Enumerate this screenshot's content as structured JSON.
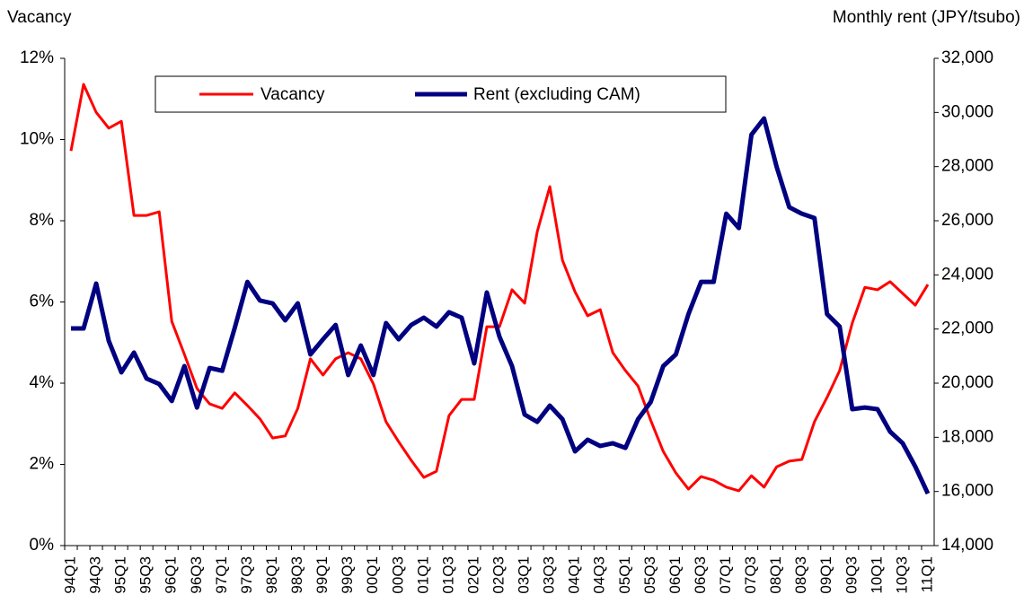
{
  "chart_data": {
    "type": "line",
    "ylabel": "Vacancy",
    "y2label": "Monthly rent (JPY/tsubo)",
    "categories": [
      "94Q1",
      null,
      "94Q3",
      null,
      "95Q1",
      null,
      "95Q3",
      null,
      "96Q1",
      null,
      "96Q3",
      null,
      "97Q1",
      null,
      "97Q3",
      null,
      "98Q1",
      null,
      "98Q3",
      null,
      "99Q1",
      null,
      "99Q3",
      null,
      "00Q1",
      null,
      "00Q3",
      null,
      "01Q1",
      null,
      "01Q3",
      null,
      "02Q1",
      null,
      "02Q3",
      null,
      "03Q1",
      null,
      "03Q3",
      null,
      "04Q1",
      null,
      "04Q3",
      null,
      "05Q1",
      null,
      "05Q3",
      null,
      "06Q1",
      null,
      "06Q3",
      null,
      "07Q1",
      null,
      "07Q3",
      null,
      "08Q1",
      null,
      "08Q3",
      null,
      "09Q1",
      null,
      "09Q3",
      null,
      "10Q1",
      null,
      "10Q3",
      null,
      "11Q1"
    ],
    "series": [
      {
        "name": "Vacancy",
        "color": "#ff0000",
        "axis": "y",
        "values": [
          9.72,
          11.36,
          10.67,
          10.28,
          10.45,
          8.13,
          8.13,
          8.22,
          5.52,
          4.71,
          3.87,
          3.49,
          3.38,
          3.76,
          3.45,
          3.12,
          2.65,
          2.7,
          3.38,
          4.6,
          4.2,
          4.6,
          4.75,
          4.6,
          3.98,
          3.05,
          2.56,
          2.1,
          1.68,
          1.83,
          3.2,
          3.6,
          3.6,
          5.39,
          5.39,
          6.3,
          5.97,
          7.73,
          8.84,
          7.03,
          6.25,
          5.66,
          5.81,
          4.75,
          4.31,
          3.93,
          3.09,
          2.32,
          1.79,
          1.39,
          1.7,
          1.61,
          1.44,
          1.35,
          1.72,
          1.44,
          1.94,
          2.08,
          2.12,
          3.05,
          3.65,
          4.31,
          5.48,
          6.36,
          6.3,
          6.5,
          6.21,
          5.92,
          6.43
        ]
      },
      {
        "name": "Rent (excluding CAM)",
        "color": "#000080",
        "axis": "y2",
        "values": [
          22020,
          22020,
          23680,
          21560,
          20400,
          21130,
          20170,
          19970,
          19340,
          20630,
          19100,
          20560,
          20460,
          22050,
          23740,
          23050,
          22950,
          22320,
          22950,
          21060,
          21620,
          22150,
          20300,
          21390,
          20300,
          22220,
          21620,
          22150,
          22420,
          22090,
          22620,
          22420,
          20730,
          23350,
          21720,
          20630,
          18840,
          18570,
          19170,
          18670,
          17480,
          17910,
          17680,
          17780,
          17610,
          18670,
          19300,
          20630,
          21060,
          22550,
          23740,
          23740,
          26260,
          25730,
          29180,
          29780,
          27990,
          26500,
          26260,
          26100,
          22550,
          22090,
          19040,
          19100,
          19040,
          18210,
          17780,
          16920,
          15920
        ]
      }
    ],
    "ylim": [
      0,
      12
    ],
    "yticks": [
      {
        "value": 0,
        "label": "0%"
      },
      {
        "value": 2,
        "label": "2%"
      },
      {
        "value": 4,
        "label": "4%"
      },
      {
        "value": 6,
        "label": "6%"
      },
      {
        "value": 8,
        "label": "8%"
      },
      {
        "value": 10,
        "label": "10%"
      },
      {
        "value": 12,
        "label": "12%"
      }
    ],
    "y2lim": [
      14000,
      32000
    ],
    "y2ticks": [
      {
        "value": 14000,
        "label": "14,000"
      },
      {
        "value": 16000,
        "label": "16,000"
      },
      {
        "value": 18000,
        "label": "18,000"
      },
      {
        "value": 20000,
        "label": "20,000"
      },
      {
        "value": 22000,
        "label": "22,000"
      },
      {
        "value": 24000,
        "label": "24,000"
      },
      {
        "value": 26000,
        "label": "26,000"
      },
      {
        "value": 28000,
        "label": "28,000"
      },
      {
        "value": 30000,
        "label": "30,000"
      },
      {
        "value": 32000,
        "label": "32,000"
      }
    ],
    "grid": false,
    "legend": true
  }
}
